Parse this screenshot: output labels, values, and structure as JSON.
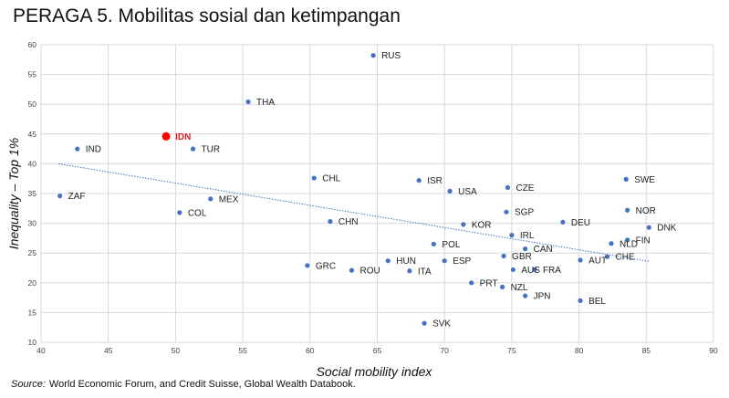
{
  "title": "PERAGA 5. Mobilitas sosial dan ketimpangan",
  "source": {
    "label": "Source:",
    "text": "World Economic Forum, and Credit Suisse, Global Wealth Databook."
  },
  "colors": {
    "point": "#4472c4",
    "highlight": "#ff0000",
    "trend": "#4472c4",
    "grid": "#d9d9d9"
  },
  "chart_data": {
    "type": "scatter",
    "xlabel": "Social mobility index",
    "ylabel": "Inequality – Top 1%",
    "xlim": [
      40,
      90
    ],
    "ylim": [
      10,
      60
    ],
    "xticks": [
      40,
      45,
      50,
      55,
      60,
      65,
      70,
      75,
      80,
      85,
      90
    ],
    "yticks": [
      10,
      15,
      20,
      25,
      30,
      35,
      40,
      45,
      50,
      55,
      60
    ],
    "grid": true,
    "trendline": {
      "style": "dotted",
      "x": [
        41.3,
        85.2
      ],
      "y": [
        40.0,
        23.6
      ]
    },
    "highlight": "IDN",
    "points": [
      {
        "label": "RUS",
        "x": 64.7,
        "y": 58.2
      },
      {
        "label": "THA",
        "x": 55.4,
        "y": 50.4
      },
      {
        "label": "IDN",
        "x": 49.3,
        "y": 44.6
      },
      {
        "label": "IND",
        "x": 42.7,
        "y": 42.5
      },
      {
        "label": "TUR",
        "x": 51.3,
        "y": 42.5
      },
      {
        "label": "ZAF",
        "x": 41.4,
        "y": 34.6
      },
      {
        "label": "MEX",
        "x": 52.6,
        "y": 34.1
      },
      {
        "label": "COL",
        "x": 50.3,
        "y": 31.8
      },
      {
        "label": "CHL",
        "x": 60.3,
        "y": 37.6
      },
      {
        "label": "CHN",
        "x": 61.5,
        "y": 30.3
      },
      {
        "label": "GRC",
        "x": 59.8,
        "y": 22.9
      },
      {
        "label": "ROU",
        "x": 63.1,
        "y": 22.1
      },
      {
        "label": "HUN",
        "x": 65.8,
        "y": 23.7
      },
      {
        "label": "ITA",
        "x": 67.4,
        "y": 22.0
      },
      {
        "label": "ISR",
        "x": 68.1,
        "y": 37.2
      },
      {
        "label": "USA",
        "x": 70.4,
        "y": 35.4
      },
      {
        "label": "POL",
        "x": 69.2,
        "y": 26.5
      },
      {
        "label": "ESP",
        "x": 70.0,
        "y": 23.7
      },
      {
        "label": "KOR",
        "x": 71.4,
        "y": 29.8
      },
      {
        "label": "PRT",
        "x": 72.0,
        "y": 20.0
      },
      {
        "label": "SVK",
        "x": 68.5,
        "y": 13.2
      },
      {
        "label": "CZE",
        "x": 74.7,
        "y": 36.0
      },
      {
        "label": "SGP",
        "x": 74.6,
        "y": 31.9
      },
      {
        "label": "IRL",
        "x": 75.0,
        "y": 28.0
      },
      {
        "label": "CAN",
        "x": 76.0,
        "y": 25.7
      },
      {
        "label": "GBR",
        "x": 74.4,
        "y": 24.5
      },
      {
        "label": "AUS",
        "x": 75.1,
        "y": 22.2
      },
      {
        "label": "FRA",
        "x": 76.7,
        "y": 22.2
      },
      {
        "label": "NZL",
        "x": 74.3,
        "y": 19.3
      },
      {
        "label": "JPN",
        "x": 76.0,
        "y": 17.8
      },
      {
        "label": "DEU",
        "x": 78.8,
        "y": 30.2
      },
      {
        "label": "AUT",
        "x": 80.1,
        "y": 23.8
      },
      {
        "label": "BEL",
        "x": 80.1,
        "y": 17.0
      },
      {
        "label": "NLD",
        "x": 82.4,
        "y": 26.6
      },
      {
        "label": "CHE",
        "x": 82.1,
        "y": 24.4
      },
      {
        "label": "SWE",
        "x": 83.5,
        "y": 37.4
      },
      {
        "label": "NOR",
        "x": 83.6,
        "y": 32.2
      },
      {
        "label": "FIN",
        "x": 83.6,
        "y": 27.2
      },
      {
        "label": "DNK",
        "x": 85.2,
        "y": 29.3
      }
    ]
  }
}
